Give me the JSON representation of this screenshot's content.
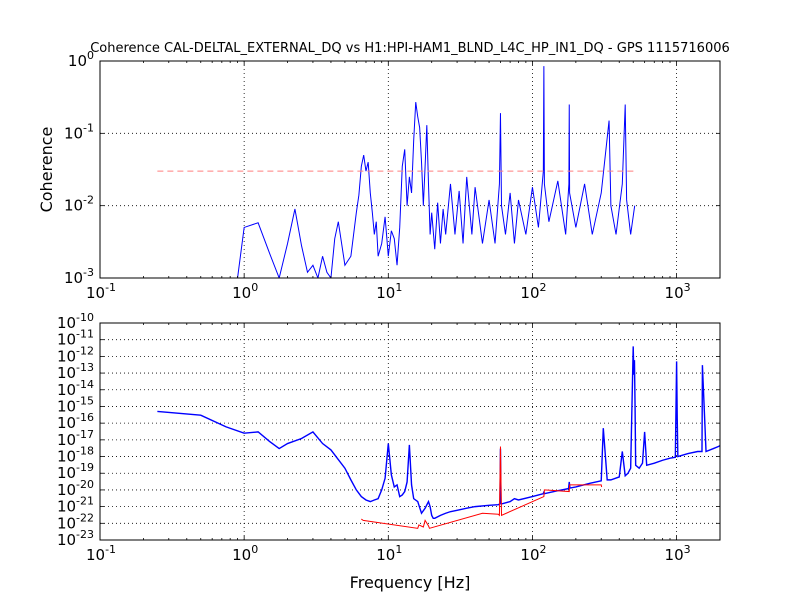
{
  "title": "Coherence CAL-DELTAL_EXTERNAL_DQ vs H1:HPI-HAM1_BLND_L4C_HP_IN1_DQ - GPS 1115716006",
  "xlabel": "Frequency [Hz]",
  "colors": {
    "coherence": "#0000ff",
    "threshold": "#ff7f7f",
    "asd_main": "#0000ff",
    "asd_neg": "#ff0000"
  },
  "chart_data": [
    {
      "type": "line",
      "name": "coherence-panel",
      "xscale": "log",
      "yscale": "log",
      "xlim": [
        0.1,
        2000
      ],
      "ylim": [
        0.001,
        1
      ],
      "ylabel": "Coherence",
      "grid": true,
      "x_ticks": [
        {
          "base": "10",
          "exp": "-1"
        },
        {
          "base": "10",
          "exp": "0"
        },
        {
          "base": "10",
          "exp": "1"
        },
        {
          "base": "10",
          "exp": "2"
        },
        {
          "base": "10",
          "exp": "3"
        }
      ],
      "y_ticks": [
        {
          "base": "10",
          "exp": "-3"
        },
        {
          "base": "10",
          "exp": "-2"
        },
        {
          "base": "10",
          "exp": "-1"
        },
        {
          "base": "10",
          "exp": "0"
        }
      ],
      "series": [
        {
          "role": "coherence",
          "color": "#0000ff",
          "x": [
            0.9,
            1.0,
            1.25,
            1.5,
            1.75,
            2.0,
            2.25,
            2.5,
            2.75,
            3.0,
            3.25,
            3.5,
            3.75,
            4.0,
            4.25,
            4.5,
            5.0,
            5.5,
            6.0,
            6.25,
            6.5,
            6.75,
            7.0,
            7.25,
            7.5,
            7.75,
            8.0,
            8.25,
            8.5,
            9.0,
            9.5,
            10.0,
            10.5,
            11.0,
            11.5,
            12.0,
            12.5,
            13.0,
            13.5,
            14.0,
            14.5,
            15.0,
            15.5,
            16.0,
            16.5,
            17.0,
            17.5,
            18.0,
            18.5,
            19.0,
            19.5,
            20.0,
            21.0,
            22.0,
            23.0,
            24.0,
            25.0,
            27.0,
            29.0,
            31.0,
            33.0,
            35.0,
            38.0,
            40.0,
            45.0,
            50.0,
            55.0,
            59.0,
            60.0,
            61.0,
            65.0,
            70.0,
            75.0,
            80.0,
            90.0,
            100.0,
            110.0,
            119.0,
            120.0,
            121.0,
            130.0,
            150.0,
            170.0,
            179.0,
            180.0,
            181.0,
            200.0,
            230.0,
            260.0,
            300.0,
            340.0,
            350.0,
            380.0,
            420.0,
            440.0,
            450.0,
            480.0,
            512.0
          ],
          "y": [
            0.001,
            0.005,
            0.0058,
            0.0022,
            0.001,
            0.003,
            0.009,
            0.0028,
            0.0012,
            0.0015,
            0.001,
            0.002,
            0.0012,
            0.001,
            0.0035,
            0.006,
            0.0015,
            0.002,
            0.008,
            0.014,
            0.035,
            0.05,
            0.03,
            0.04,
            0.015,
            0.008,
            0.004,
            0.006,
            0.002,
            0.003,
            0.007,
            0.002,
            0.0045,
            0.0035,
            0.0015,
            0.005,
            0.035,
            0.06,
            0.01,
            0.025,
            0.015,
            0.08,
            0.27,
            0.17,
            0.12,
            0.04,
            0.01,
            0.035,
            0.13,
            0.02,
            0.004,
            0.008,
            0.0025,
            0.011,
            0.003,
            0.009,
            0.004,
            0.02,
            0.004,
            0.016,
            0.003,
            0.025,
            0.004,
            0.018,
            0.003,
            0.012,
            0.003,
            0.02,
            0.19,
            0.01,
            0.004,
            0.015,
            0.003,
            0.012,
            0.004,
            0.018,
            0.005,
            0.03,
            0.85,
            0.02,
            0.006,
            0.022,
            0.004,
            0.02,
            0.25,
            0.015,
            0.005,
            0.02,
            0.004,
            0.015,
            0.15,
            0.01,
            0.004,
            0.02,
            0.25,
            0.012,
            0.004,
            0.01
          ]
        },
        {
          "role": "threshold",
          "color": "#ff7f7f",
          "dashed": true,
          "x": [
            0.25,
            512
          ],
          "y": [
            0.03,
            0.03
          ]
        }
      ]
    },
    {
      "type": "line",
      "name": "spectrum-panel",
      "xscale": "log",
      "yscale": "log",
      "xlim": [
        0.1,
        2000
      ],
      "ylim": [
        1e-23,
        1e-10
      ],
      "ylabel": "",
      "grid": true,
      "x_ticks": [
        {
          "base": "10",
          "exp": "-1"
        },
        {
          "base": "10",
          "exp": "0"
        },
        {
          "base": "10",
          "exp": "1"
        },
        {
          "base": "10",
          "exp": "2"
        },
        {
          "base": "10",
          "exp": "3"
        }
      ],
      "y_ticks": [
        {
          "base": "10",
          "exp": "-23"
        },
        {
          "base": "10",
          "exp": "-22"
        },
        {
          "base": "10",
          "exp": "-21"
        },
        {
          "base": "10",
          "exp": "-20"
        },
        {
          "base": "10",
          "exp": "-19"
        },
        {
          "base": "10",
          "exp": "-18"
        },
        {
          "base": "10",
          "exp": "-17"
        },
        {
          "base": "10",
          "exp": "-16"
        },
        {
          "base": "10",
          "exp": "-15"
        },
        {
          "base": "10",
          "exp": "-14"
        },
        {
          "base": "10",
          "exp": "-13"
        },
        {
          "base": "10",
          "exp": "-12"
        },
        {
          "base": "10",
          "exp": "-11"
        },
        {
          "base": "10",
          "exp": "-10"
        }
      ],
      "series": [
        {
          "role": "main",
          "color": "#0000ff",
          "x": [
            0.25,
            0.5,
            0.75,
            1.0,
            1.25,
            1.5,
            1.75,
            2.0,
            2.5,
            3.0,
            3.5,
            4.0,
            5.0,
            5.5,
            6.0,
            6.5,
            7.0,
            7.5,
            8.0,
            8.5,
            9.0,
            9.5,
            10.0,
            10.5,
            11.0,
            11.5,
            12.0,
            12.5,
            13.0,
            13.5,
            14.0,
            14.5,
            15.0,
            16.0,
            17.0,
            18.0,
            19.0,
            19.5,
            20.0,
            20.5,
            21.0,
            23.0,
            25.0,
            27.0,
            30.0,
            35.0,
            40.0,
            50.0,
            58.0,
            59.5,
            60.0,
            60.5,
            62.0,
            70.0,
            75.0,
            80.0,
            100.0,
            119.0,
            120.0,
            121.0,
            150.0,
            178.0,
            180.0,
            182.0,
            200.0,
            250.0,
            300.0,
            310.0,
            330.0,
            350.0,
            400.0,
            420.0,
            440.0,
            460.0,
            480.0,
            500.0,
            505.0,
            510.0,
            515.0,
            520.0,
            550.0,
            580.0,
            600.0,
            620.0,
            700.0,
            800.0,
            900.0,
            980.0,
            1000.0,
            1010.0,
            1020.0,
            1200.0,
            1400.0,
            1500.0,
            1510.0,
            1600.0,
            1800.0,
            1950.0,
            2000.0
          ],
          "y": [
            5e-16,
            3e-16,
            6e-17,
            2.5e-17,
            3e-17,
            8e-18,
            3e-18,
            6e-18,
            1.2e-17,
            3e-17,
            6e-18,
            2.5e-18,
            2e-19,
            4e-20,
            1e-20,
            4e-21,
            2.5e-21,
            2e-21,
            2.5e-21,
            3e-21,
            1e-20,
            5e-20,
            6e-18,
            8e-20,
            1.5e-20,
            2e-20,
            4e-21,
            5e-21,
            8e-21,
            3e-20,
            5e-18,
            2e-20,
            3e-21,
            2e-21,
            4e-22,
            8e-22,
            2e-21,
            1e-21,
            3e-22,
            2e-22,
            2e-22,
            3e-22,
            4e-22,
            5e-22,
            6e-22,
            8e-22,
            1e-21,
            1.2e-21,
            1.3e-21,
            1.5e-21,
            3e-18,
            1.5e-21,
            1.5e-21,
            2e-21,
            3e-21,
            2.5e-21,
            4e-21,
            6e-21,
            8e-21,
            6e-21,
            9e-21,
            1.2e-20,
            3e-20,
            1.3e-20,
            1.5e-20,
            2.5e-20,
            3.5e-20,
            5e-17,
            4e-20,
            4e-20,
            6e-20,
            2e-18,
            7e-20,
            1e-19,
            2e-19,
            4e-12,
            8e-14,
            6e-13,
            1e-15,
            3e-19,
            2e-19,
            4e-19,
            3e-17,
            3e-19,
            4e-19,
            6e-19,
            8e-19,
            9e-19,
            5e-13,
            2e-16,
            1e-18,
            1.5e-18,
            2e-18,
            2e-18,
            3e-13,
            2e-18,
            3e-18,
            4e-18,
            4.5e-18
          ]
        },
        {
          "role": "negative",
          "color": "#ff0000",
          "x": [
            6.5,
            6.7,
            16.0,
            16.3,
            17.5,
            18.0,
            19.0,
            19.3,
            45.0,
            58.0,
            59.0,
            60.0,
            61.0,
            120.0,
            121.0,
            180.0,
            181.0,
            300.0,
            302.0
          ],
          "y": [
            1.8e-22,
            1.5e-22,
            5e-23,
            8e-23,
            6e-23,
            1.5e-22,
            7e-23,
            5e-23,
            4e-22,
            3.5e-22,
            3e-22,
            4e-18,
            3e-22,
            4e-21,
            1e-20,
            8e-21,
            2e-20,
            2e-20,
            1.5e-20
          ]
        }
      ]
    }
  ]
}
